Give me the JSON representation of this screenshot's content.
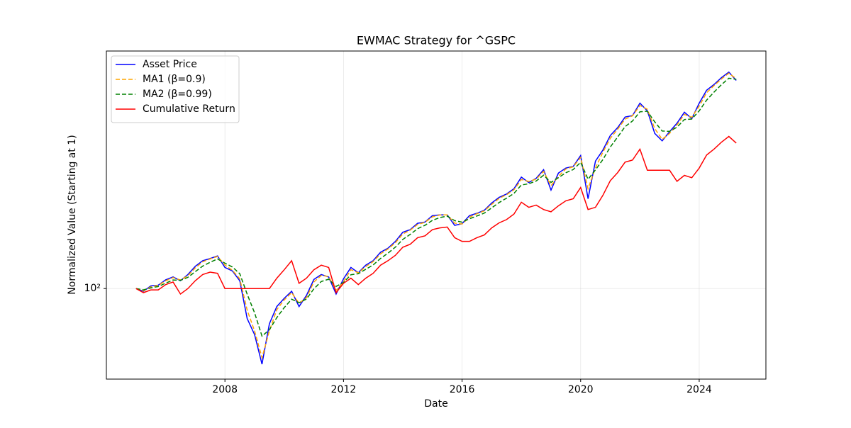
{
  "chart_data": {
    "type": "line",
    "title": "EWMAC Strategy for ^GSPC",
    "x_label": "Date",
    "y_label": "Normalized Value (Starting at 1)",
    "x": [
      2005,
      2005.25,
      2005.5,
      2005.75,
      2006,
      2006.25,
      2006.5,
      2006.75,
      2007,
      2007.25,
      2007.5,
      2007.75,
      2008,
      2008.25,
      2008.5,
      2008.75,
      2009,
      2009.25,
      2009.5,
      2009.75,
      2010,
      2010.25,
      2010.5,
      2010.75,
      2011,
      2011.25,
      2011.5,
      2011.75,
      2012,
      2012.25,
      2012.5,
      2012.75,
      2013,
      2013.25,
      2013.5,
      2013.75,
      2014,
      2014.25,
      2014.5,
      2014.75,
      2015,
      2015.25,
      2015.5,
      2015.75,
      2016,
      2016.25,
      2016.5,
      2016.75,
      2017,
      2017.25,
      2017.5,
      2017.75,
      2018,
      2018.25,
      2018.5,
      2018.75,
      2019,
      2019.25,
      2019.5,
      2019.75,
      2020,
      2020.25,
      2020.5,
      2020.75,
      2021,
      2021.25,
      2021.5,
      2021.75,
      2022,
      2022.25,
      2022.5,
      2022.75,
      2023,
      2023.25,
      2023.5,
      2023.75,
      2024,
      2024.25,
      2024.5,
      2024.75,
      2025,
      2025.25
    ],
    "series": [
      {
        "name": "Asset Price",
        "color": "#0000ff",
        "linestyle": "solid",
        "values": [
          100,
          98,
          102,
          102.5,
          106.7,
          109,
          106,
          111,
          118,
          123,
          125,
          127.5,
          117,
          114,
          106,
          80,
          71,
          57,
          77,
          87.5,
          93,
          98,
          87.5,
          95,
          107,
          111,
          109,
          96,
          107.5,
          117,
          112.5,
          119,
          123,
          131,
          135,
          142,
          152,
          155,
          162.5,
          164,
          172,
          173,
          173,
          160,
          162,
          172,
          175,
          179,
          189,
          197,
          202,
          210,
          229,
          220,
          227,
          242,
          208,
          236,
          245,
          248,
          269,
          195,
          258,
          280,
          312,
          331,
          358,
          362,
          397,
          375,
          317,
          300,
          321,
          342,
          371,
          354,
          397,
          437,
          456,
          480,
          500,
          470
        ]
      },
      {
        "name": "MA1 (β=0.9)",
        "color": "#ffa500",
        "linestyle": "dashed",
        "values": [
          100,
          98.4,
          101.2,
          102.4,
          105.9,
          108.5,
          106.6,
          110,
          116.6,
          122,
          124.6,
          127,
          119.1,
          114.6,
          107.6,
          85.2,
          73,
          59.8,
          73,
          85.5,
          91.9,
          97,
          89.6,
          93.5,
          105,
          110.2,
          109.4,
          98.6,
          105.2,
          115.1,
          112.4,
          117.7,
          122.2,
          129.4,
          134.2,
          140.6,
          150,
          154.4,
          161,
          163.7,
          170.4,
          172.8,
          173,
          162.6,
          161.6,
          170,
          174.4,
          178.2,
          187,
          195.4,
          201,
          208.4,
          225,
          221.8,
          225.6,
          239,
          214.8,
          230.4,
          243.2,
          247.4,
          265,
          210,
          245.4,
          275.6,
          305.6,
          327.2,
          352.6,
          361.2,
          390.2,
          379.4,
          328.6,
          303.4,
          316.8,
          337.8,
          365.2,
          357.4,
          388.4,
          429,
          452.2,
          475.2,
          496,
          476
        ]
      },
      {
        "name": "MA2 (β=0.99)",
        "color": "#008000",
        "linestyle": "dashed",
        "values": [
          100,
          99,
          100.5,
          101.5,
          104.1,
          106.6,
          106.3,
          108.7,
          113.4,
          118.2,
          121.6,
          124.6,
          120.8,
          117.4,
          111.7,
          95.9,
          83.5,
          70.2,
          73.6,
          80.6,
          86.8,
          92.4,
          90,
          92.5,
          99.8,
          105.4,
          107.2,
          101.6,
          104.6,
          110.8,
          111.7,
          115.4,
          119.2,
          125.1,
          130.1,
          136.1,
          144.1,
          149.6,
          156.1,
          160.1,
          166.1,
          169.6,
          171.3,
          165.7,
          163.9,
          168,
          171.5,
          175.3,
          182.2,
          189.6,
          195.8,
          202.9,
          216,
          218,
          222.5,
          232.3,
          220.2,
          228.1,
          236.6,
          242.3,
          255.7,
          225.4,
          241.7,
          260.9,
          286.5,
          308.8,
          333.4,
          347.7,
          372.4,
          373.7,
          345.4,
          322.7,
          321.9,
          332,
          351.5,
          352.8,
          374.9,
          406,
          431,
          455.5,
          477.8,
          473.9
        ]
      },
      {
        "name": "Cumulative Return",
        "color": "#ff0000",
        "linestyle": "solid",
        "values": [
          100,
          97,
          99,
          99,
          103,
          105,
          96,
          100,
          106,
          111,
          113,
          112,
          100,
          100,
          100,
          100,
          100,
          100,
          100,
          108,
          115,
          123,
          104,
          108,
          115,
          119,
          117,
          97,
          104,
          108,
          103,
          108,
          112,
          119,
          123,
          128,
          136,
          139,
          146,
          148,
          155,
          157,
          158,
          146,
          142,
          142,
          146,
          149,
          157,
          163,
          167,
          174,
          190,
          183,
          186,
          180,
          177,
          185,
          192,
          195,
          212,
          180,
          183,
          200,
          223,
          237,
          256,
          260,
          282,
          241,
          241,
          241,
          241,
          222,
          232,
          228,
          245,
          270,
          282,
          297,
          310,
          295
        ]
      }
    ],
    "xlim": [
      2004,
      2026.25
    ],
    "xticks": [
      2008,
      2012,
      2016,
      2020,
      2024
    ],
    "ylim": [
      51,
      585
    ],
    "yticks": [
      {
        "value": 100,
        "label": "10²"
      }
    ],
    "y_scale": "log",
    "grid": true,
    "legend": "upper left"
  }
}
